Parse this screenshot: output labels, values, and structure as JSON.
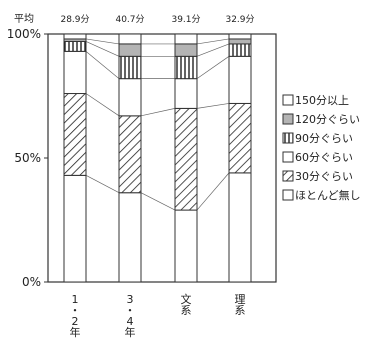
{
  "chart_data": {
    "type": "bar",
    "stacked": true,
    "average_label": "平均",
    "averages": [
      "28.9分",
      "40.7分",
      "39.1分",
      "32.9分"
    ],
    "categories": [
      "1・2年",
      "3・4年",
      "文系",
      "理系"
    ],
    "category_lines": [
      [
        "1",
        "・",
        "2",
        "年"
      ],
      [
        "3",
        "・",
        "4",
        "年"
      ],
      [
        "文",
        "系"
      ],
      [
        "理",
        "系"
      ]
    ],
    "y_ticks": [
      "0%",
      "50%",
      "100%"
    ],
    "ylim": [
      0,
      100
    ],
    "grid": false,
    "legend_position": "right",
    "series": [
      {
        "name": "ほとんど無し",
        "pattern": "blank",
        "values": [
          43,
          36,
          29,
          44
        ]
      },
      {
        "name": "30分ぐらい",
        "pattern": "diagonal",
        "values": [
          33,
          31,
          41,
          28
        ]
      },
      {
        "name": "60分ぐらい",
        "pattern": "blank",
        "values": [
          17,
          15,
          12,
          19
        ]
      },
      {
        "name": "90分ぐらい",
        "pattern": "vertical",
        "values": [
          4,
          9,
          9,
          5
        ]
      },
      {
        "name": "120分ぐらい",
        "pattern": "gray",
        "values": [
          1,
          5,
          5,
          2
        ]
      },
      {
        "name": "150分以上",
        "pattern": "blank",
        "values": [
          2,
          4,
          4,
          2
        ]
      }
    ],
    "legend_order": [
      "150分以上",
      "120分ぐらい",
      "90分ぐらい",
      "60分ぐらい",
      "30分ぐらい",
      "ほとんど無し"
    ],
    "colors": {
      "frame": "#333333",
      "gray_fill": "#b4b4b4",
      "connector": "#666666",
      "background": "#ffffff"
    }
  }
}
